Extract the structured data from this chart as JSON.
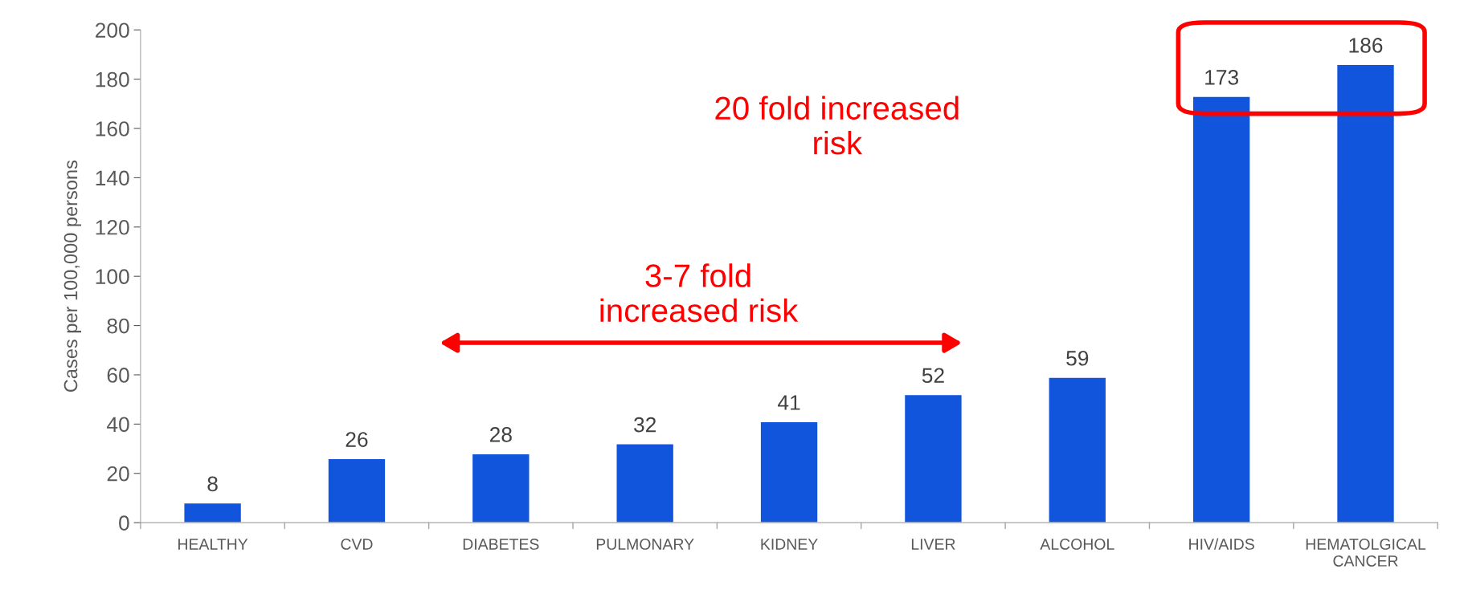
{
  "chart_data": {
    "type": "bar",
    "ylabel": "Cases per 100,000 persons",
    "categories": [
      "HEALTHY",
      "CVD",
      "DIABETES",
      "PULMONARY",
      "KIDNEY",
      "LIVER",
      "ALCOHOL",
      "HIV/AIDS",
      "HEMATOLGICAL\nCANCER"
    ],
    "values": [
      8,
      26,
      28,
      32,
      41,
      52,
      59,
      173,
      186
    ],
    "color": "#1155dd",
    "ylim": [
      0,
      200
    ],
    "yticks": [
      0,
      20,
      40,
      60,
      80,
      100,
      120,
      140,
      160,
      180,
      200
    ],
    "grid": false,
    "data_labels": true,
    "annotations": [
      "20 fold increased\nrisk",
      "3-7 fold\nincreased risk"
    ]
  }
}
